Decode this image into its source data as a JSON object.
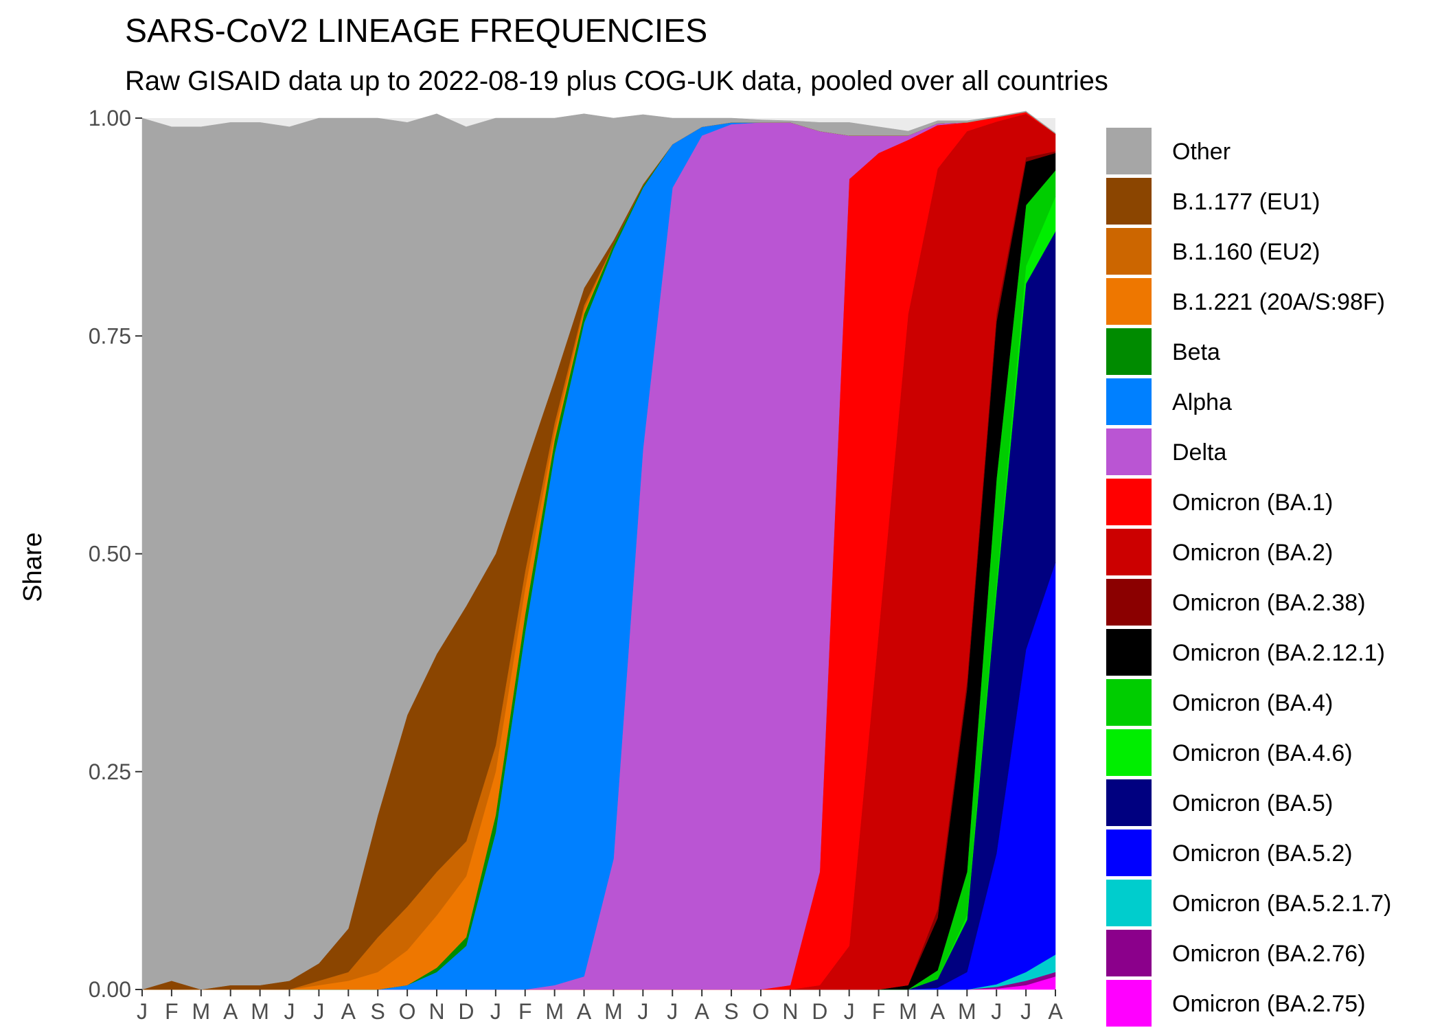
{
  "chart_data": {
    "type": "area",
    "title": "SARS-CoV2 LINEAGE FREQUENCIES",
    "subtitle": "Raw GISAID data up to 2022-08-19 plus COG-UK data, pooled over all countries",
    "xlabel": "",
    "ylabel": "Share",
    "ylim": [
      0,
      1
    ],
    "yticks": [
      "0.00",
      "0.25",
      "0.50",
      "0.75",
      "1.00"
    ],
    "x_tick_labels": [
      "J",
      "F",
      "M",
      "A",
      "M",
      "J",
      "J",
      "A",
      "S",
      "O",
      "N",
      "D",
      "J",
      "F",
      "M",
      "A",
      "M",
      "J",
      "J",
      "A",
      "S",
      "O",
      "N",
      "D",
      "J",
      "F",
      "M",
      "A",
      "M",
      "J",
      "J",
      "A"
    ],
    "x_tick_months": [
      "2020-01",
      "2020-02",
      "2020-03",
      "2020-04",
      "2020-05",
      "2020-06",
      "2020-07",
      "2020-08",
      "2020-09",
      "2020-10",
      "2020-11",
      "2020-12",
      "2021-01",
      "2021-02",
      "2021-03",
      "2021-04",
      "2021-05",
      "2021-06",
      "2021-07",
      "2021-08",
      "2021-09",
      "2021-10",
      "2021-11",
      "2021-12",
      "2022-01",
      "2022-02",
      "2022-03",
      "2022-04",
      "2022-05",
      "2022-06",
      "2022-07",
      "2022-08"
    ],
    "x": [
      "2020-01",
      "2020-02",
      "2020-03",
      "2020-04",
      "2020-05",
      "2020-06",
      "2020-07",
      "2020-08",
      "2020-09",
      "2020-10",
      "2020-11",
      "2020-12",
      "2021-01",
      "2021-02",
      "2021-03",
      "2021-04",
      "2021-05",
      "2021-06",
      "2021-07",
      "2021-08",
      "2021-09",
      "2021-10",
      "2021-11",
      "2021-12",
      "2022-01",
      "2022-02",
      "2022-03",
      "2022-04",
      "2022-05",
      "2022-06",
      "2022-07",
      "2022-08"
    ],
    "grid": true,
    "legend_position": "right",
    "stack_order_bottom_to_top": [
      "Omicron (BA.2.75)",
      "Omicron (BA.2.76)",
      "Omicron (BA.5.2.1.7)",
      "Omicron (BA.5.2)",
      "Omicron (BA.5)",
      "Omicron (BA.4.6)",
      "Omicron (BA.4)",
      "Omicron (BA.2.12.1)",
      "Omicron (BA.2.38)",
      "Omicron (BA.2)",
      "Omicron (BA.1)",
      "Delta",
      "Alpha",
      "Beta",
      "B.1.221 (20A/S:98F)",
      "B.1.160 (EU2)",
      "B.1.177 (EU1)",
      "Other"
    ],
    "series": [
      {
        "name": "Other",
        "color": "#A6A6A6",
        "values": [
          1.0,
          0.98,
          0.99,
          0.99,
          0.99,
          0.98,
          0.97,
          0.93,
          0.8,
          0.68,
          0.62,
          0.55,
          0.5,
          0.4,
          0.3,
          0.2,
          0.14,
          0.08,
          0.03,
          0.01,
          0.005,
          0.003,
          0.002,
          0.01,
          0.015,
          0.01,
          0.005,
          0.003,
          0.002,
          0.001,
          0.001,
          0.001
        ]
      },
      {
        "name": "B.1.177 (EU1)",
        "color": "#8B4500",
        "values": [
          0,
          0.01,
          0,
          0.005,
          0.005,
          0.01,
          0.02,
          0.05,
          0.14,
          0.22,
          0.25,
          0.27,
          0.22,
          0.12,
          0.05,
          0.02,
          0.005,
          0.002,
          0,
          0,
          0,
          0,
          0,
          0,
          0,
          0,
          0,
          0,
          0,
          0,
          0,
          0
        ]
      },
      {
        "name": "B.1.160 (EU2)",
        "color": "#CC6600",
        "values": [
          0,
          0,
          0,
          0,
          0,
          0,
          0.005,
          0.01,
          0.04,
          0.05,
          0.05,
          0.04,
          0.03,
          0.02,
          0.01,
          0.005,
          0,
          0,
          0,
          0,
          0,
          0,
          0,
          0,
          0,
          0,
          0,
          0,
          0,
          0,
          0,
          0
        ]
      },
      {
        "name": "B.1.221 (20A/S:98F)",
        "color": "#EE7700",
        "values": [
          0,
          0,
          0,
          0,
          0,
          0,
          0.005,
          0.01,
          0.02,
          0.04,
          0.06,
          0.07,
          0.05,
          0.03,
          0.01,
          0.005,
          0,
          0,
          0,
          0,
          0,
          0,
          0,
          0,
          0,
          0,
          0,
          0,
          0,
          0,
          0,
          0
        ]
      },
      {
        "name": "Beta",
        "color": "#008B00",
        "values": [
          0,
          0,
          0,
          0,
          0,
          0,
          0,
          0,
          0,
          0,
          0.005,
          0.01,
          0.02,
          0.02,
          0.015,
          0.01,
          0.005,
          0.002,
          0,
          0,
          0,
          0,
          0,
          0,
          0,
          0,
          0,
          0,
          0,
          0,
          0,
          0
        ]
      },
      {
        "name": "Alpha",
        "color": "#0080FF",
        "values": [
          0,
          0,
          0,
          0,
          0,
          0,
          0,
          0,
          0,
          0.005,
          0.02,
          0.05,
          0.18,
          0.41,
          0.61,
          0.75,
          0.7,
          0.3,
          0.05,
          0.01,
          0.002,
          0,
          0,
          0,
          0,
          0,
          0,
          0,
          0,
          0,
          0,
          0
        ]
      },
      {
        "name": "Delta",
        "color": "#BA55D3",
        "values": [
          0,
          0,
          0,
          0,
          0,
          0,
          0,
          0,
          0,
          0,
          0,
          0,
          0,
          0,
          0.005,
          0.015,
          0.15,
          0.62,
          0.92,
          0.98,
          0.993,
          0.995,
          0.99,
          0.85,
          0.05,
          0.02,
          0.005,
          0.002,
          0,
          0,
          0,
          0
        ]
      },
      {
        "name": "Omicron (BA.1)",
        "color": "#FF0000",
        "values": [
          0,
          0,
          0,
          0,
          0,
          0,
          0,
          0,
          0,
          0,
          0,
          0,
          0,
          0,
          0,
          0,
          0,
          0,
          0,
          0,
          0,
          0,
          0.005,
          0.13,
          0.88,
          0.55,
          0.2,
          0.05,
          0.01,
          0.005,
          0.002,
          0
        ]
      },
      {
        "name": "Omicron (BA.2)",
        "color": "#CC0000",
        "values": [
          0,
          0,
          0,
          0,
          0,
          0,
          0,
          0,
          0,
          0,
          0,
          0,
          0,
          0,
          0,
          0,
          0,
          0,
          0,
          0,
          0,
          0,
          0,
          0.005,
          0.05,
          0.41,
          0.77,
          0.85,
          0.63,
          0.22,
          0.05,
          0.02
        ]
      },
      {
        "name": "Omicron (BA.2.38)",
        "color": "#8B0000",
        "values": [
          0,
          0,
          0,
          0,
          0,
          0,
          0,
          0,
          0,
          0,
          0,
          0,
          0,
          0,
          0,
          0,
          0,
          0,
          0,
          0,
          0,
          0,
          0,
          0,
          0,
          0,
          0,
          0.01,
          0.01,
          0.01,
          0.005,
          0.002
        ]
      },
      {
        "name": "Omicron (BA.2.12.1)",
        "color": "#000000",
        "values": [
          0,
          0,
          0,
          0,
          0,
          0,
          0,
          0,
          0,
          0,
          0,
          0,
          0,
          0,
          0,
          0,
          0,
          0,
          0,
          0,
          0,
          0,
          0,
          0,
          0,
          0,
          0.005,
          0.06,
          0.21,
          0.18,
          0.05,
          0.02
        ]
      },
      {
        "name": "Omicron (BA.4)",
        "color": "#00CD00",
        "values": [
          0,
          0,
          0,
          0,
          0,
          0,
          0,
          0,
          0,
          0,
          0,
          0,
          0,
          0,
          0,
          0,
          0,
          0,
          0,
          0,
          0,
          0,
          0,
          0,
          0,
          0,
          0,
          0.01,
          0.05,
          0.12,
          0.07,
          0.03
        ]
      },
      {
        "name": "Omicron (BA.4.6)",
        "color": "#00EE00",
        "values": [
          0,
          0,
          0,
          0,
          0,
          0,
          0,
          0,
          0,
          0,
          0,
          0,
          0,
          0,
          0,
          0,
          0,
          0,
          0,
          0,
          0,
          0,
          0,
          0,
          0,
          0,
          0,
          0,
          0.005,
          0.01,
          0.02,
          0.04
        ]
      },
      {
        "name": "Omicron (BA.5)",
        "color": "#000080",
        "values": [
          0,
          0,
          0,
          0,
          0,
          0,
          0,
          0,
          0,
          0,
          0,
          0,
          0,
          0,
          0,
          0,
          0,
          0,
          0,
          0,
          0,
          0,
          0,
          0,
          0,
          0,
          0,
          0.01,
          0.06,
          0.3,
          0.42,
          0.38
        ]
      },
      {
        "name": "Omicron (BA.5.2)",
        "color": "#0000FF",
        "values": [
          0,
          0,
          0,
          0,
          0,
          0,
          0,
          0,
          0,
          0,
          0,
          0,
          0,
          0,
          0,
          0,
          0,
          0,
          0,
          0,
          0,
          0,
          0,
          0,
          0,
          0,
          0,
          0.002,
          0.02,
          0.15,
          0.37,
          0.45
        ]
      },
      {
        "name": "Omicron (BA.5.2.1.7)",
        "color": "#00CDCD",
        "values": [
          0,
          0,
          0,
          0,
          0,
          0,
          0,
          0,
          0,
          0,
          0,
          0,
          0,
          0,
          0,
          0,
          0,
          0,
          0,
          0,
          0,
          0,
          0,
          0,
          0,
          0,
          0,
          0,
          0,
          0.003,
          0.01,
          0.02
        ]
      },
      {
        "name": "Omicron (BA.2.76)",
        "color": "#8B008B",
        "values": [
          0,
          0,
          0,
          0,
          0,
          0,
          0,
          0,
          0,
          0,
          0,
          0,
          0,
          0,
          0,
          0,
          0,
          0,
          0,
          0,
          0,
          0,
          0,
          0,
          0,
          0,
          0,
          0,
          0,
          0.002,
          0.005,
          0.005
        ]
      },
      {
        "name": "Omicron (BA.2.75)",
        "color": "#FF00FF",
        "values": [
          0,
          0,
          0,
          0,
          0,
          0,
          0,
          0,
          0,
          0,
          0,
          0,
          0,
          0,
          0,
          0,
          0,
          0,
          0,
          0,
          0,
          0,
          0,
          0,
          0,
          0,
          0,
          0,
          0,
          0.001,
          0.005,
          0.015
        ]
      }
    ]
  }
}
